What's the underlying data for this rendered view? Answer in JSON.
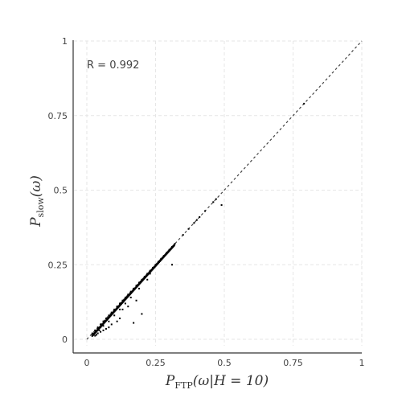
{
  "chart_data": {
    "type": "scatter",
    "title": "",
    "xlabel": {
      "base": "P",
      "sub": "FTP",
      "arg": "(ω|H = 10)"
    },
    "ylabel": {
      "base": "P",
      "sub": "slow",
      "arg": "(ω)"
    },
    "xlim": [
      0,
      1
    ],
    "ylim": [
      0,
      1
    ],
    "x_ticks": [
      0,
      0.25,
      0.5,
      0.75,
      1
    ],
    "y_ticks": [
      0,
      0.25,
      0.5,
      0.75,
      1
    ],
    "x_tick_labels": [
      "0",
      "0.25",
      "0.5",
      "0.75",
      "1"
    ],
    "y_tick_labels": [
      "0",
      "0.25",
      "0.5",
      "0.75",
      "1"
    ],
    "grid": true,
    "reference_line": {
      "style": "dashed",
      "from": [
        0,
        0
      ],
      "to": [
        1,
        1
      ]
    },
    "annotation": "R = 0.992",
    "outliers": [
      [
        0.49,
        0.45
      ],
      [
        0.31,
        0.25
      ],
      [
        0.2,
        0.085
      ],
      [
        0.17,
        0.055
      ],
      [
        0.22,
        0.2
      ],
      [
        0.18,
        0.13
      ],
      [
        0.15,
        0.11
      ],
      [
        0.13,
        0.1
      ],
      [
        0.12,
        0.07
      ],
      [
        0.11,
        0.06
      ],
      [
        0.09,
        0.05
      ],
      [
        0.08,
        0.04
      ],
      [
        0.07,
        0.035
      ],
      [
        0.06,
        0.03
      ],
      [
        0.05,
        0.025
      ],
      [
        0.045,
        0.03
      ],
      [
        0.04,
        0.02
      ],
      [
        0.035,
        0.015
      ],
      [
        0.03,
        0.012
      ],
      [
        0.025,
        0.018
      ],
      [
        0.1,
        0.08
      ],
      [
        0.14,
        0.12
      ],
      [
        0.16,
        0.14
      ],
      [
        0.19,
        0.17
      ],
      [
        0.23,
        0.22
      ],
      [
        0.12,
        0.1
      ],
      [
        0.08,
        0.06
      ],
      [
        0.06,
        0.045
      ],
      [
        0.05,
        0.04
      ],
      [
        0.04,
        0.035
      ]
    ],
    "diagonal_points": [
      [
        0.02,
        0.02
      ],
      [
        0.03,
        0.03
      ],
      [
        0.04,
        0.04
      ],
      [
        0.05,
        0.05
      ],
      [
        0.06,
        0.06
      ],
      [
        0.07,
        0.07
      ],
      [
        0.08,
        0.08
      ],
      [
        0.09,
        0.09
      ],
      [
        0.1,
        0.1
      ],
      [
        0.11,
        0.11
      ],
      [
        0.12,
        0.12
      ],
      [
        0.13,
        0.13
      ],
      [
        0.14,
        0.14
      ],
      [
        0.15,
        0.15
      ],
      [
        0.16,
        0.16
      ],
      [
        0.17,
        0.17
      ],
      [
        0.18,
        0.18
      ],
      [
        0.19,
        0.19
      ],
      [
        0.2,
        0.2
      ],
      [
        0.21,
        0.21
      ],
      [
        0.22,
        0.22
      ],
      [
        0.23,
        0.23
      ],
      [
        0.24,
        0.24
      ],
      [
        0.25,
        0.25
      ],
      [
        0.26,
        0.26
      ],
      [
        0.27,
        0.27
      ],
      [
        0.28,
        0.28
      ],
      [
        0.29,
        0.29
      ],
      [
        0.3,
        0.3
      ],
      [
        0.31,
        0.31
      ],
      [
        0.32,
        0.32
      ],
      [
        0.35,
        0.35
      ],
      [
        0.37,
        0.37
      ],
      [
        0.39,
        0.39
      ],
      [
        0.4,
        0.4
      ],
      [
        0.41,
        0.41
      ],
      [
        0.43,
        0.43
      ],
      [
        0.46,
        0.46
      ],
      [
        0.47,
        0.47
      ],
      [
        0.79,
        0.79
      ]
    ],
    "point_color": "#000000",
    "line_color": "#444444",
    "grid_color": "#e6e6e6"
  }
}
